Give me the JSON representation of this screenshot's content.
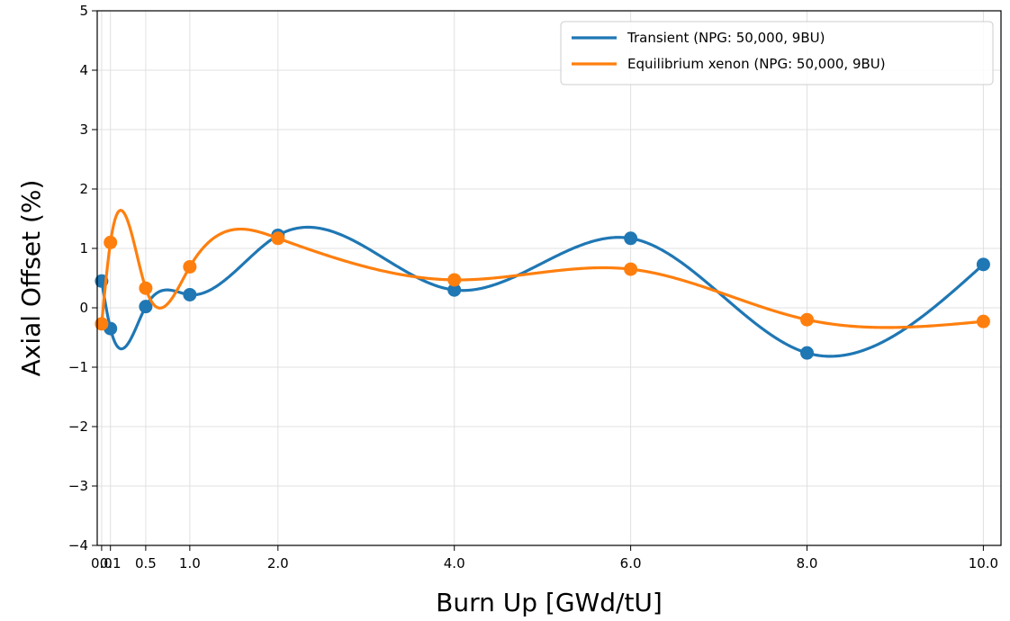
{
  "chart_data": {
    "type": "line",
    "title": "",
    "xlabel": "Burn Up [GWd/tU]",
    "ylabel": "Axial Offset (%)",
    "xlim": [
      -0.05,
      10.2
    ],
    "ylim": [
      -4,
      5
    ],
    "x_ticks": [
      0.0,
      0.1,
      0.5,
      1.0,
      2.0,
      4.0,
      6.0,
      8.0,
      10.0
    ],
    "x_tick_labels": [
      "0.0",
      "0.1",
      "0.5",
      "1.0",
      "2.0",
      "4.0",
      "6.0",
      "8.0",
      "10.0"
    ],
    "y_ticks": [
      -4,
      -3,
      -2,
      -1,
      0,
      1,
      2,
      3,
      4,
      5
    ],
    "y_tick_labels": [
      "−4",
      "−3",
      "−2",
      "−1",
      "0",
      "1",
      "2",
      "3",
      "4",
      "5"
    ],
    "grid": true,
    "legend_position": "upper right",
    "series": [
      {
        "name": "Transient (NPG: 50,000, 9BU)",
        "color": "#1f77b4",
        "x": [
          0.0,
          0.1,
          0.5,
          1.0,
          2.0,
          4.0,
          6.0,
          8.0,
          10.0
        ],
        "y": [
          0.45,
          -0.35,
          0.02,
          0.22,
          1.22,
          0.3,
          1.17,
          -0.76,
          0.73
        ]
      },
      {
        "name": "Equilibrium xenon (NPG: 50,000, 9BU)",
        "color": "#ff7f0e",
        "x": [
          0.0,
          0.1,
          0.5,
          1.0,
          2.0,
          4.0,
          6.0,
          8.0,
          10.0
        ],
        "y": [
          -0.27,
          1.1,
          0.33,
          0.69,
          1.17,
          0.47,
          0.65,
          -0.2,
          -0.23
        ]
      }
    ]
  }
}
